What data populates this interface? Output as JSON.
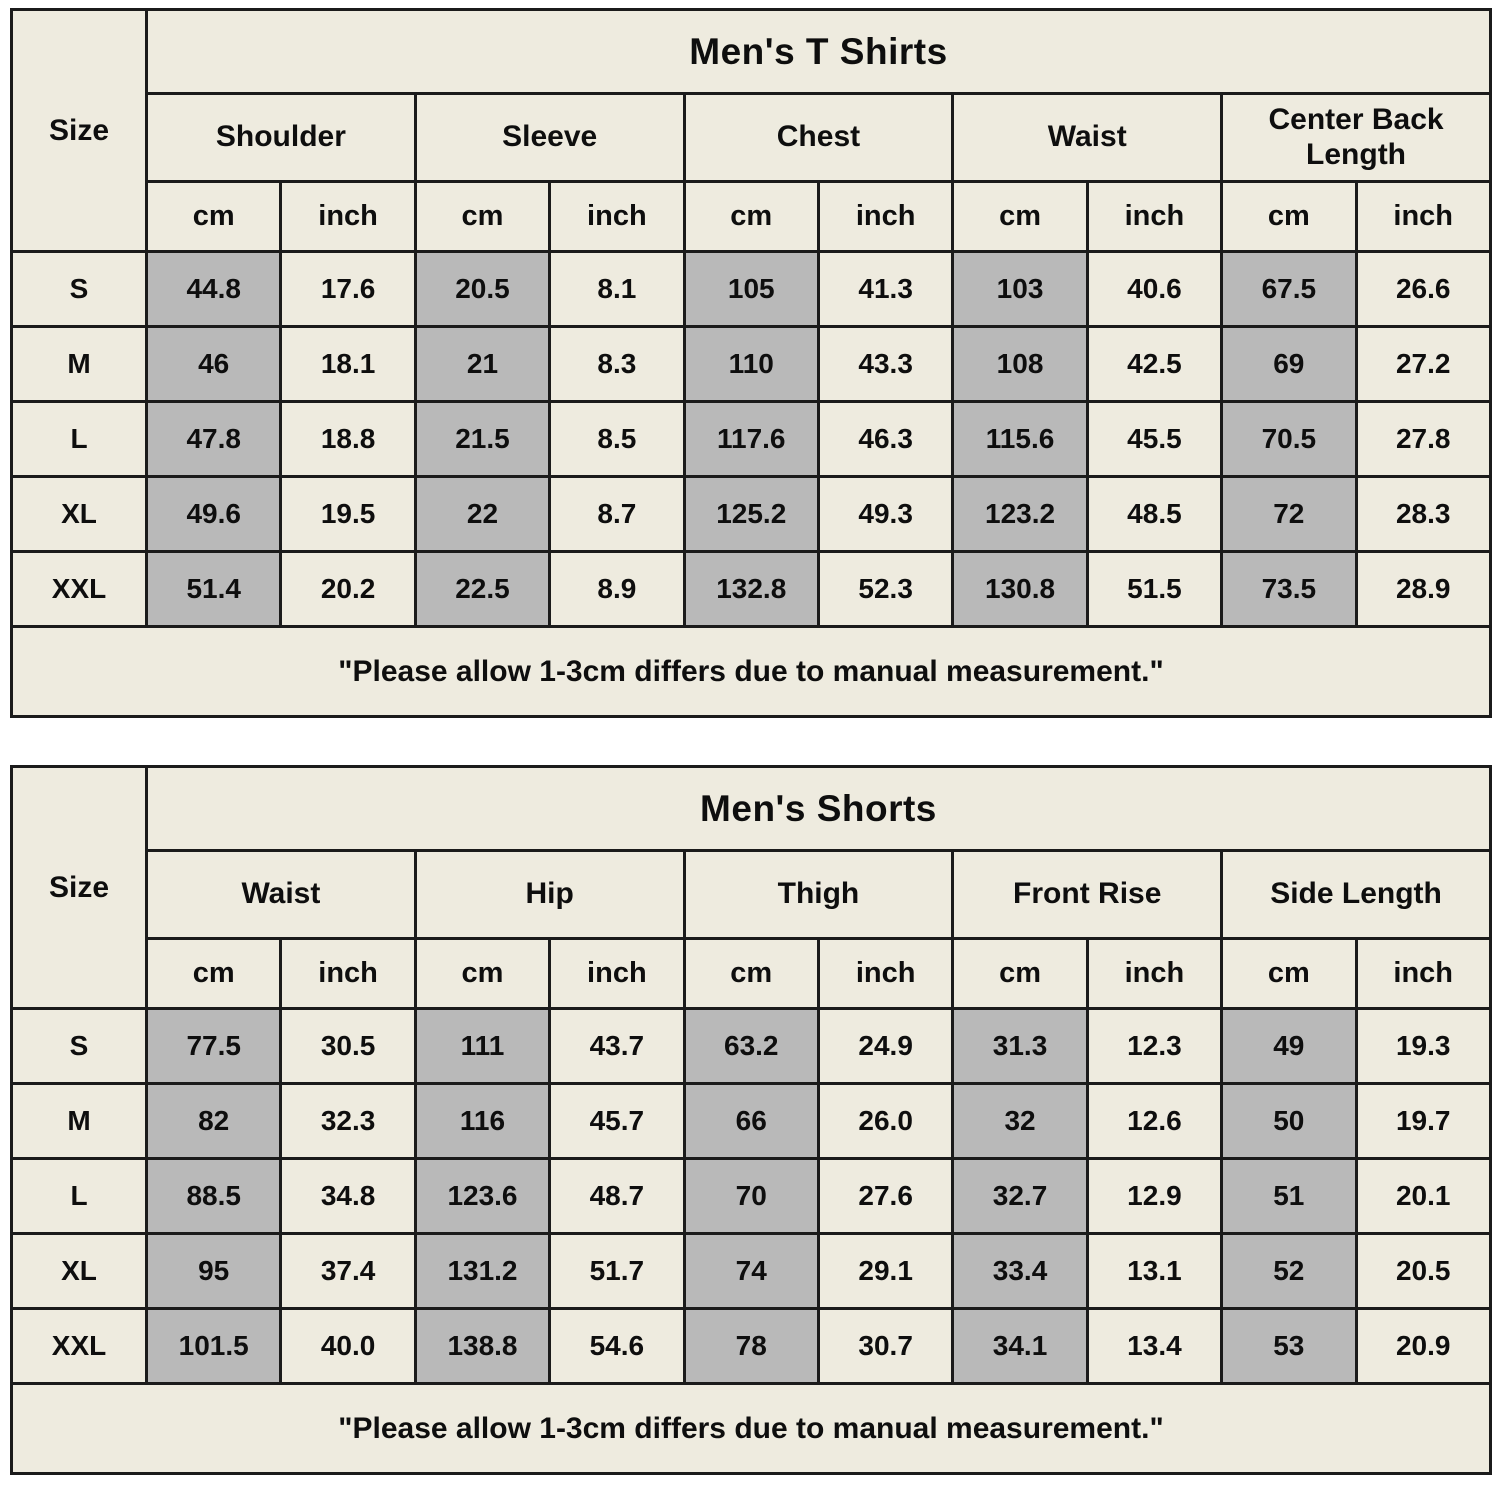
{
  "colors": {
    "cell_background": "#eeebdf",
    "highlight_background": "#b9b9b9",
    "border": "#1b1b1b",
    "page_background": "#ffffff",
    "text": "#0e0e0e"
  },
  "tables": [
    {
      "title": "Men's T Shirts",
      "size_label": "Size",
      "unit_cm": "cm",
      "unit_inch": "inch",
      "columns": [
        "Shoulder",
        "Sleeve",
        "Chest",
        "Waist",
        "Center Back Length"
      ],
      "rows": [
        {
          "size": "S",
          "values": [
            "44.8",
            "17.6",
            "20.5",
            "8.1",
            "105",
            "41.3",
            "103",
            "40.6",
            "67.5",
            "26.6"
          ]
        },
        {
          "size": "M",
          "values": [
            "46",
            "18.1",
            "21",
            "8.3",
            "110",
            "43.3",
            "108",
            "42.5",
            "69",
            "27.2"
          ]
        },
        {
          "size": "L",
          "values": [
            "47.8",
            "18.8",
            "21.5",
            "8.5",
            "117.6",
            "46.3",
            "115.6",
            "45.5",
            "70.5",
            "27.8"
          ]
        },
        {
          "size": "XL",
          "values": [
            "49.6",
            "19.5",
            "22",
            "8.7",
            "125.2",
            "49.3",
            "123.2",
            "48.5",
            "72",
            "28.3"
          ]
        },
        {
          "size": "XXL",
          "values": [
            "51.4",
            "20.2",
            "22.5",
            "8.9",
            "132.8",
            "52.3",
            "130.8",
            "51.5",
            "73.5",
            "28.9"
          ]
        }
      ],
      "note": "\"Please allow 1-3cm differs due to manual measurement.\""
    },
    {
      "title": "Men's Shorts",
      "size_label": "Size",
      "unit_cm": "cm",
      "unit_inch": "inch",
      "columns": [
        "Waist",
        "Hip",
        "Thigh",
        "Front Rise",
        "Side Length"
      ],
      "rows": [
        {
          "size": "S",
          "values": [
            "77.5",
            "30.5",
            "111",
            "43.7",
            "63.2",
            "24.9",
            "31.3",
            "12.3",
            "49",
            "19.3"
          ]
        },
        {
          "size": "M",
          "values": [
            "82",
            "32.3",
            "116",
            "45.7",
            "66",
            "26.0",
            "32",
            "12.6",
            "50",
            "19.7"
          ]
        },
        {
          "size": "L",
          "values": [
            "88.5",
            "34.8",
            "123.6",
            "48.7",
            "70",
            "27.6",
            "32.7",
            "12.9",
            "51",
            "20.1"
          ]
        },
        {
          "size": "XL",
          "values": [
            "95",
            "37.4",
            "131.2",
            "51.7",
            "74",
            "29.1",
            "33.4",
            "13.1",
            "52",
            "20.5"
          ]
        },
        {
          "size": "XXL",
          "values": [
            "101.5",
            "40.0",
            "138.8",
            "54.6",
            "78",
            "30.7",
            "34.1",
            "13.4",
            "53",
            "20.9"
          ]
        }
      ],
      "note": "\"Please allow 1-3cm differs due to manual measurement.\""
    }
  ]
}
